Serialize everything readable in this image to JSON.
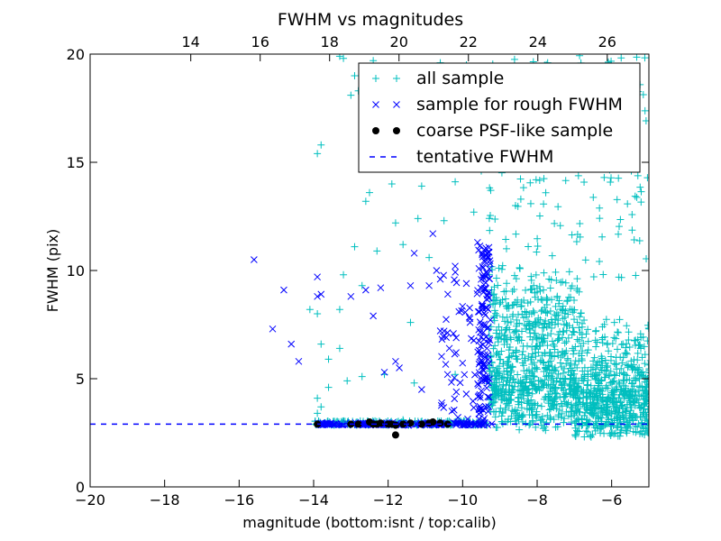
{
  "chart_data": {
    "type": "scatter",
    "title": "FWHM vs magnitudes",
    "xlabel": "magnitude (bottom:isnt / top:calib)",
    "ylabel": "FWHM (pix)",
    "xlim": [
      -20,
      -5
    ],
    "ylim": [
      0,
      20
    ],
    "top_xlim": [
      11.1,
      27.2
    ],
    "x_ticks": [
      -20,
      -18,
      -16,
      -14,
      -12,
      -10,
      -8,
      -6
    ],
    "x_tick_labels": [
      "−20",
      "−18",
      "−16",
      "−14",
      "−12",
      "−10",
      "−8",
      "−6"
    ],
    "y_ticks": [
      0,
      5,
      10,
      15,
      20
    ],
    "y_tick_labels": [
      "0",
      "5",
      "10",
      "15",
      "20"
    ],
    "top_ticks": [
      14,
      16,
      18,
      20,
      22,
      24,
      26
    ],
    "top_tick_labels": [
      "14",
      "16",
      "18",
      "20",
      "22",
      "24",
      "26"
    ],
    "grid": false,
    "legend_position": "upper-right",
    "colors": {
      "all_sample": "#00bfbf",
      "rough_sample": "#0000ff",
      "psf_sample": "#000000",
      "tentative": "#0000ff"
    },
    "series": [
      {
        "name": "all sample",
        "marker": "plus",
        "color": "#00bfbf",
        "points": [
          [
            -13.3,
            19.9
          ],
          [
            -13.2,
            19.8
          ],
          [
            -12.4,
            19.7
          ],
          [
            -11.6,
            19.2
          ],
          [
            -10.6,
            19.6
          ],
          [
            -9.9,
            19.5
          ],
          [
            -9.4,
            19.3
          ],
          [
            -12.9,
            19.0
          ],
          [
            -12.8,
            18.3
          ],
          [
            -13.0,
            18.1
          ],
          [
            -12.3,
            18.6
          ],
          [
            -11.4,
            18.4
          ],
          [
            -10.4,
            18.8
          ],
          [
            -9.6,
            18.2
          ],
          [
            -13.8,
            15.8
          ],
          [
            -13.9,
            15.4
          ],
          [
            -12.6,
            16.0
          ],
          [
            -12.4,
            16.3
          ],
          [
            -11.7,
            16.7
          ],
          [
            -10.7,
            15.9
          ],
          [
            -9.8,
            16.4
          ],
          [
            -12.1,
            14.9
          ],
          [
            -12.5,
            13.6
          ],
          [
            -11.9,
            14.0
          ],
          [
            -11.1,
            13.9
          ],
          [
            -10.2,
            14.1
          ],
          [
            -9.5,
            14.6
          ],
          [
            -12.6,
            13.2
          ],
          [
            -11.8,
            12.2
          ],
          [
            -11.2,
            12.4
          ],
          [
            -10.5,
            12.3
          ],
          [
            -9.7,
            12.7
          ],
          [
            -12.9,
            11.1
          ],
          [
            -12.3,
            10.9
          ],
          [
            -11.6,
            11.2
          ],
          [
            -10.9,
            10.6
          ],
          [
            -13.2,
            9.8
          ],
          [
            -12.7,
            9.3
          ],
          [
            -14.1,
            8.2
          ],
          [
            -13.9,
            8.0
          ],
          [
            -13.3,
            8.2
          ],
          [
            -11.4,
            7.6
          ],
          [
            -13.8,
            6.6
          ],
          [
            -13.6,
            5.9
          ],
          [
            -13.3,
            6.4
          ],
          [
            -13.1,
            4.9
          ],
          [
            -12.7,
            5.1
          ],
          [
            -13.6,
            4.6
          ],
          [
            -12.1,
            5.2
          ],
          [
            -11.3,
            4.8
          ],
          [
            -10.2,
            5.2
          ],
          [
            -13.9,
            4.1
          ],
          [
            -13.8,
            3.7
          ],
          [
            -13.9,
            3.4
          ],
          [
            -13.2,
            3.0
          ],
          [
            -12.5,
            3.0
          ],
          [
            -11.6,
            3.1
          ],
          [
            -10.4,
            3.0
          ]
        ]
      },
      {
        "name": "sample for rough FWHM",
        "marker": "x",
        "color": "#0000ff",
        "points": [
          [
            -15.6,
            10.5
          ],
          [
            -15.1,
            7.3
          ],
          [
            -14.8,
            9.1
          ],
          [
            -14.6,
            6.6
          ],
          [
            -14.4,
            5.8
          ],
          [
            -13.9,
            9.7
          ],
          [
            -13.9,
            8.8
          ],
          [
            -13.8,
            8.9
          ],
          [
            -13.0,
            8.8
          ],
          [
            -12.6,
            9.1
          ],
          [
            -12.4,
            7.9
          ],
          [
            -12.2,
            9.2
          ],
          [
            -12.1,
            5.3
          ],
          [
            -11.8,
            5.8
          ],
          [
            -11.7,
            5.5
          ],
          [
            -11.4,
            9.3
          ],
          [
            -11.3,
            10.8
          ],
          [
            -11.1,
            4.5
          ],
          [
            -10.9,
            9.3
          ],
          [
            -10.8,
            11.7
          ],
          [
            -10.7,
            10.0
          ],
          [
            -10.6,
            9.6
          ],
          [
            -10.5,
            7.2
          ],
          [
            -10.2,
            10.2
          ],
          [
            -10.1,
            8.1
          ],
          [
            -9.9,
            9.4
          ],
          [
            -9.8,
            7.6
          ],
          [
            -9.6,
            11.3
          ],
          [
            -9.4,
            10.4
          ]
        ]
      },
      {
        "name": "coarse PSF-like sample",
        "marker": "dot",
        "color": "#000000",
        "points": [
          [
            -13.9,
            2.9
          ],
          [
            -13.0,
            2.9
          ],
          [
            -12.8,
            2.9
          ],
          [
            -12.5,
            3.0
          ],
          [
            -12.4,
            2.9
          ],
          [
            -12.3,
            2.9
          ],
          [
            -12.2,
            2.95
          ],
          [
            -12.0,
            2.9
          ],
          [
            -11.9,
            2.9
          ],
          [
            -11.8,
            2.85
          ],
          [
            -11.8,
            2.4
          ],
          [
            -11.6,
            2.9
          ],
          [
            -11.4,
            2.95
          ],
          [
            -11.1,
            2.9
          ],
          [
            -10.9,
            2.95
          ],
          [
            -10.8,
            3.0
          ],
          [
            -10.6,
            2.95
          ],
          [
            -10.4,
            2.9
          ]
        ]
      },
      {
        "name": "tentative FWHM",
        "marker": "dashed-line",
        "color": "#0000ff",
        "y": 2.9
      }
    ]
  }
}
